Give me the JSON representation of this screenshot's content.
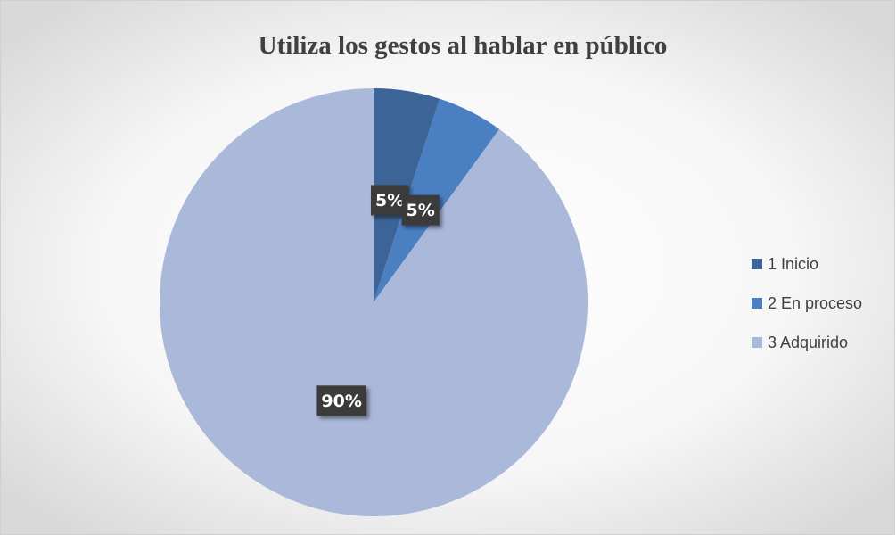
{
  "chart_data": {
    "type": "pie",
    "title": "Utiliza los gestos al hablar en público",
    "categories": [
      "1 Inicio",
      "2 En proceso",
      "3 Adquirido"
    ],
    "values": [
      5,
      5,
      90
    ],
    "value_labels": [
      "5%",
      "5%",
      "90%"
    ],
    "colors": [
      "#3d6496",
      "#4a7fc1",
      "#aab9d9"
    ],
    "legend": "right"
  }
}
